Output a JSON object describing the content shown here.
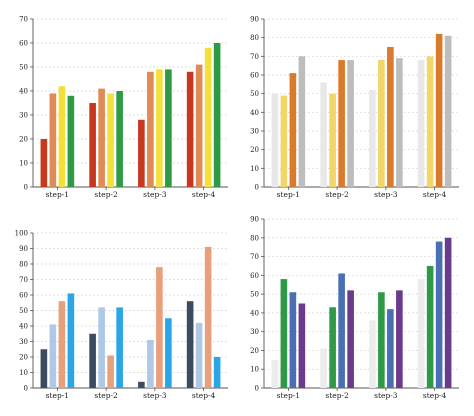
{
  "chart_data": [
    {
      "type": "bar",
      "categories": [
        "step-1",
        "step-2",
        "step-3",
        "step-4"
      ],
      "yticks": [
        "0",
        "10",
        "20",
        "30",
        "40",
        "50",
        "60",
        "70"
      ],
      "ylim": [
        0,
        70
      ],
      "grid": "horizontal dotted",
      "series": [
        {
          "values": [
            20,
            35,
            28,
            48
          ],
          "color": "#c8381f"
        },
        {
          "values": [
            39,
            41,
            48,
            51
          ],
          "color": "#e08a55"
        },
        {
          "values": [
            42,
            39,
            49,
            58
          ],
          "color": "#f4e03a"
        },
        {
          "values": [
            38,
            40,
            49,
            60
          ],
          "color": "#2e9a44"
        }
      ]
    },
    {
      "type": "bar",
      "categories": [
        "step-1",
        "step-2",
        "step-3",
        "step-4"
      ],
      "yticks": [
        "0",
        "10",
        "20",
        "30",
        "40",
        "50",
        "60",
        "70",
        "80",
        "90"
      ],
      "ylim": [
        0,
        90
      ],
      "grid": "horizontal dotted",
      "series": [
        {
          "values": [
            50,
            56,
            52,
            68
          ],
          "color": "#e8e8e8"
        },
        {
          "values": [
            49,
            50,
            68,
            70
          ],
          "color": "#f2d66a"
        },
        {
          "values": [
            61,
            68,
            75,
            82
          ],
          "color": "#d97a2c"
        },
        {
          "values": [
            70,
            68,
            69,
            81
          ],
          "color": "#bdbdbd"
        }
      ]
    },
    {
      "type": "bar",
      "categories": [
        "step-1",
        "step-2",
        "step-3",
        "step-4"
      ],
      "yticks": [
        "0",
        "10",
        "20",
        "30",
        "40",
        "50",
        "60",
        "70",
        "80",
        "90",
        "100"
      ],
      "ylim": [
        0,
        100
      ],
      "grid": "horizontal dotted",
      "series": [
        {
          "values": [
            25,
            35,
            4,
            56
          ],
          "color": "#3d4b5e"
        },
        {
          "values": [
            41,
            52,
            31,
            42
          ],
          "color": "#aec8e6"
        },
        {
          "values": [
            56,
            21,
            78,
            91
          ],
          "color": "#e8a07c"
        },
        {
          "values": [
            61,
            52,
            45,
            20
          ],
          "color": "#2aa6e6"
        }
      ]
    },
    {
      "type": "bar",
      "categories": [
        "step-1",
        "step-2",
        "step-3",
        "step-4"
      ],
      "yticks": [
        "0",
        "10",
        "20",
        "30",
        "40",
        "50",
        "60",
        "70",
        "80",
        "90"
      ],
      "ylim": [
        0,
        90
      ],
      "grid": "horizontal dotted",
      "series": [
        {
          "values": [
            15,
            21,
            36,
            58
          ],
          "color": "#ececec"
        },
        {
          "values": [
            58,
            43,
            51,
            65
          ],
          "color": "#2e9a48"
        },
        {
          "values": [
            51,
            61,
            42,
            78
          ],
          "color": "#4a6fb5"
        },
        {
          "values": [
            45,
            52,
            52,
            80
          ],
          "color": "#6a3a8c"
        }
      ]
    }
  ]
}
